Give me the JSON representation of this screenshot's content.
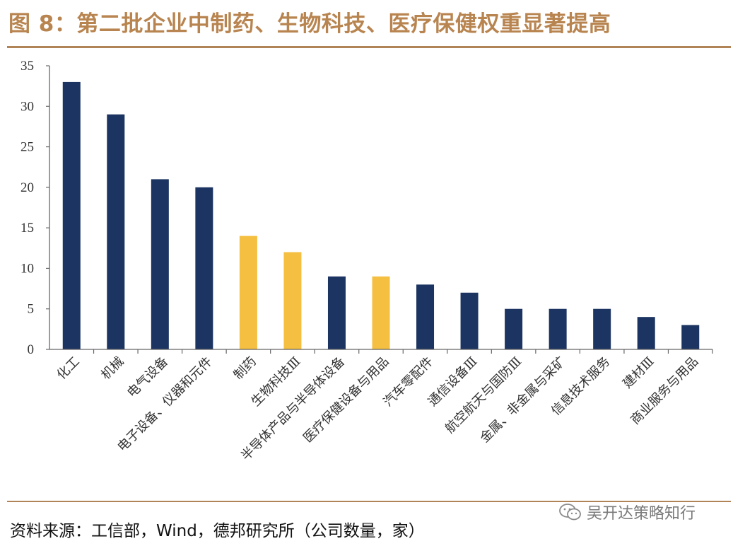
{
  "figure": {
    "title": "图 8：第二批企业中制药、生物科技、医疗保健权重显著提高",
    "source": "资料来源：工信部，Wind，德邦研究所（公司数量，家）",
    "watermark": "吴开达策略知行",
    "watermark_icon": "wechat-icon"
  },
  "colors": {
    "navy": "#1c3461",
    "gold": "#f5bf41",
    "accent": "#b8844f",
    "axis": "#666666"
  },
  "chart_data": {
    "type": "bar",
    "title": "",
    "xlabel": "",
    "ylabel": "",
    "ylim": [
      0,
      35
    ],
    "yticks": [
      0,
      5,
      10,
      15,
      20,
      25,
      30,
      35
    ],
    "grid": false,
    "categories": [
      "化工",
      "机械",
      "电气设备",
      "电子设备、仪器和元件",
      "制药",
      "生物科技Ⅲ",
      "半导体产品与半导体设备",
      "医疗保健设备与用品",
      "汽车零配件",
      "通信设备Ⅲ",
      "航空航天与国防Ⅲ",
      "金属、非金属与采矿",
      "信息技术服务",
      "建材Ⅲ",
      "商业服务与用品"
    ],
    "values": [
      33,
      29,
      21,
      20,
      14,
      12,
      9,
      9,
      8,
      7,
      5,
      5,
      5,
      4,
      3
    ],
    "highlight": [
      false,
      false,
      false,
      false,
      true,
      true,
      false,
      true,
      false,
      false,
      false,
      false,
      false,
      false,
      false
    ]
  }
}
